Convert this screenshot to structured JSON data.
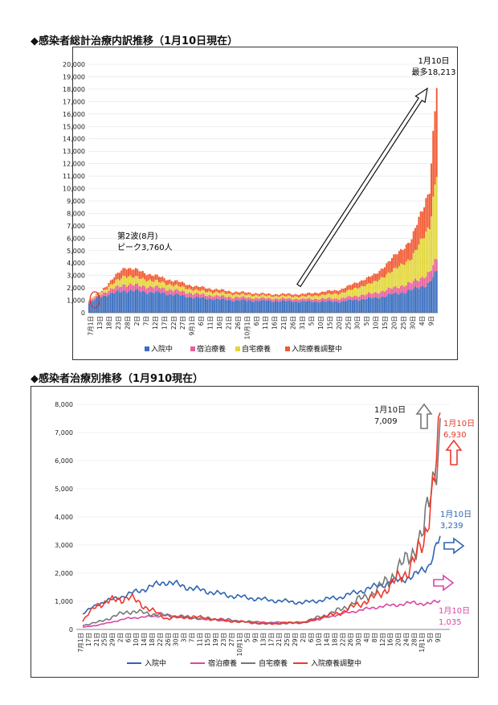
{
  "titles": {
    "chart1": "◆感染者総計治療内訳推移（1月10日現在）",
    "chart2": "◆感染者治療別推移（1月910現在）"
  },
  "chart_data": [
    {
      "type": "bar",
      "stacked": true,
      "title": "◆感染者総計治療内訳推移（1月10日現在）",
      "ylim": [
        0,
        20000
      ],
      "yticks": [
        "0",
        "1,000",
        "2,000",
        "3,000",
        "4,000",
        "5,000",
        "6,000",
        "7,000",
        "8,000",
        "9,000",
        "10,000",
        "11,000",
        "12,000",
        "13,000",
        "14,000",
        "15,000",
        "16,000",
        "17,000",
        "18,000",
        "19,000",
        "20,000"
      ],
      "xtick_labels": [
        "7月1日",
        "13日",
        "18日",
        "23日",
        "28日",
        "2日",
        "7日",
        "12日",
        "17日",
        "22日",
        "27日",
        "9月1日",
        "6日",
        "11日",
        "16日",
        "21日",
        "26日",
        "10月1日",
        "6日",
        "11日",
        "16日",
        "21日",
        "26日",
        "31日",
        "5日",
        "10日",
        "15日",
        "20日",
        "25日",
        "30日",
        "5日",
        "10日",
        "15日",
        "20日",
        "25日",
        "30日",
        "4日",
        "9日"
      ],
      "legend": [
        "入院中",
        "宿泊療養",
        "自宅療養",
        "入院療養調整中"
      ],
      "legend_position": "bottom",
      "colors": [
        "#3b6fc0",
        "#e8609a",
        "#e3d73a",
        "#f25a32"
      ],
      "knots": {
        "hospital": [
          [
            0,
            750
          ],
          [
            6,
            1300
          ],
          [
            20,
            1800
          ],
          [
            40,
            1600
          ],
          [
            60,
            1200
          ],
          [
            80,
            1000
          ],
          [
            100,
            950
          ],
          [
            120,
            900
          ],
          [
            140,
            900
          ],
          [
            160,
            1200
          ],
          [
            180,
            1800
          ],
          [
            190,
            2400
          ],
          [
            194,
            3239
          ]
        ],
        "hotel": [
          [
            0,
            120
          ],
          [
            6,
            200
          ],
          [
            20,
            500
          ],
          [
            40,
            400
          ],
          [
            60,
            300
          ],
          [
            80,
            250
          ],
          [
            100,
            200
          ],
          [
            120,
            200
          ],
          [
            140,
            250
          ],
          [
            160,
            400
          ],
          [
            180,
            600
          ],
          [
            190,
            800
          ],
          [
            194,
            1035
          ]
        ],
        "home": [
          [
            0,
            60
          ],
          [
            6,
            100
          ],
          [
            20,
            700
          ],
          [
            40,
            450
          ],
          [
            60,
            300
          ],
          [
            80,
            250
          ],
          [
            100,
            200
          ],
          [
            120,
            200
          ],
          [
            140,
            400
          ],
          [
            160,
            900
          ],
          [
            180,
            2000
          ],
          [
            190,
            3800
          ],
          [
            194,
            7009
          ]
        ],
        "adjust": [
          [
            0,
            30
          ],
          [
            6,
            80
          ],
          [
            20,
            700
          ],
          [
            40,
            400
          ],
          [
            60,
            300
          ],
          [
            80,
            200
          ],
          [
            100,
            150
          ],
          [
            120,
            200
          ],
          [
            140,
            300
          ],
          [
            160,
            600
          ],
          [
            180,
            1500
          ],
          [
            190,
            3000
          ],
          [
            194,
            6930
          ]
        ]
      },
      "annotations": {
        "peak2_line1": "第2波(8月)",
        "peak2_line2": "ピーク3,760人",
        "max_line1": "1月10日",
        "max_line2": "最多18,213"
      }
    },
    {
      "type": "line",
      "title": "◆感染者治療別推移（1月910現在）",
      "ylim": [
        0,
        8000
      ],
      "yticks": [
        "0",
        "1,000",
        "2,000",
        "3,000",
        "4,000",
        "5,000",
        "6,000",
        "7,000",
        "8,000"
      ],
      "xtick_labels": [
        "7月1日",
        "17日",
        "21日",
        "25日",
        "29日",
        "2日",
        "6日",
        "10日",
        "14日",
        "18日",
        "22日",
        "26日",
        "30日",
        "3日",
        "7日",
        "11日",
        "15日",
        "19日",
        "23日",
        "27日",
        "10月1日",
        "5日",
        "9日",
        "13日",
        "17日",
        "21日",
        "25日",
        "29日",
        "2日",
        "6日",
        "10日",
        "14日",
        "18日",
        "22日",
        "26日",
        "30日",
        "4日",
        "8日",
        "12日",
        "16日",
        "20日",
        "24日",
        "28日",
        "1月1日",
        "5日",
        "9日"
      ],
      "legend_position": "bottom",
      "series": [
        {
          "name": "入院中",
          "color": "#2f64b3",
          "knots": [
            [
              0,
              550
            ],
            [
              8,
              900
            ],
            [
              25,
              1250
            ],
            [
              45,
              1700
            ],
            [
              60,
              1450
            ],
            [
              80,
              1200
            ],
            [
              100,
              1050
            ],
            [
              120,
              950
            ],
            [
              140,
              1150
            ],
            [
              160,
              1550
            ],
            [
              180,
              1900
            ],
            [
              188,
              2300
            ],
            [
              194,
              3239
            ]
          ]
        },
        {
          "name": "宿泊療養",
          "color": "#d848a6",
          "knots": [
            [
              0,
              80
            ],
            [
              8,
              150
            ],
            [
              25,
              400
            ],
            [
              45,
              500
            ],
            [
              60,
              400
            ],
            [
              80,
              300
            ],
            [
              100,
              250
            ],
            [
              120,
              250
            ],
            [
              140,
              550
            ],
            [
              160,
              800
            ],
            [
              180,
              950
            ],
            [
              188,
              900
            ],
            [
              194,
              1035
            ]
          ]
        },
        {
          "name": "自宅療養",
          "color": "#777777",
          "knots": [
            [
              0,
              150
            ],
            [
              8,
              250
            ],
            [
              25,
              650
            ],
            [
              45,
              500
            ],
            [
              60,
              420
            ],
            [
              80,
              330
            ],
            [
              100,
              200
            ],
            [
              120,
              250
            ],
            [
              140,
              700
            ],
            [
              160,
              1400
            ],
            [
              175,
              2400
            ],
            [
              185,
              3400
            ],
            [
              194,
              7009
            ]
          ]
        },
        {
          "name": "入院療養調整中",
          "color": "#ee3a2c",
          "knots": [
            [
              0,
              300
            ],
            [
              8,
              900
            ],
            [
              25,
              1150
            ],
            [
              45,
              400
            ],
            [
              60,
              450
            ],
            [
              80,
              300
            ],
            [
              100,
              200
            ],
            [
              120,
              250
            ],
            [
              140,
              600
            ],
            [
              160,
              1200
            ],
            [
              175,
              2000
            ],
            [
              185,
              3000
            ],
            [
              194,
              6930
            ]
          ]
        }
      ],
      "annotations": {
        "home_line1": "1月10日",
        "home_line2": "7,009",
        "adjust_line1": "1月10日",
        "adjust_line2": "6,930",
        "hospital_line1": "1月10日",
        "hospital_line2": "3,239",
        "hotel_line1": "1月10日",
        "hotel_line2": "1,035"
      }
    }
  ]
}
